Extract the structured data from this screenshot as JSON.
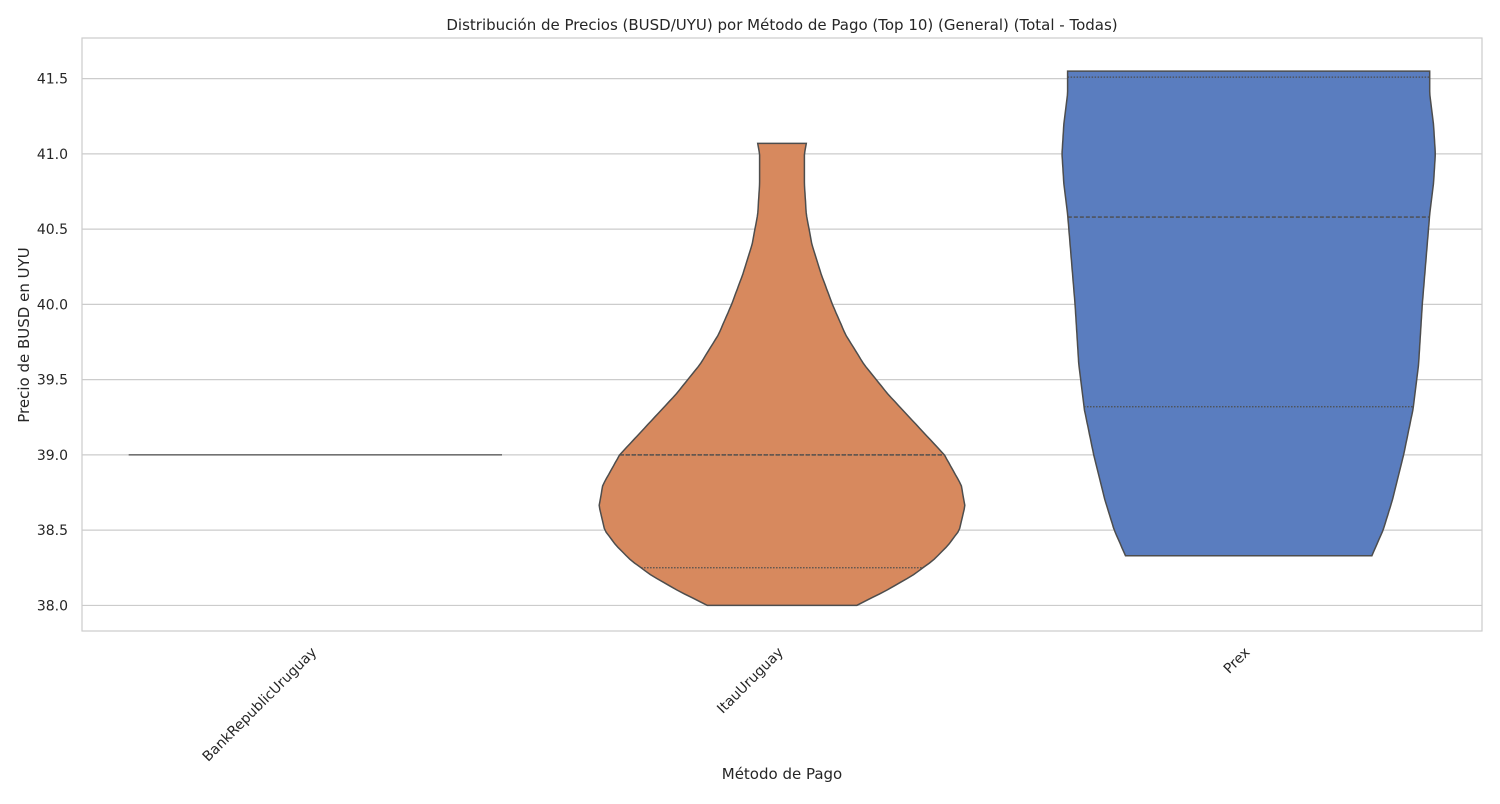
{
  "chart_data": {
    "type": "violin",
    "title": "Distribución de Precios (BUSD/UYU) por Método de Pago (Top 10) (General) (Total - Todas)",
    "xlabel": "Método de Pago",
    "ylabel": "Precio de BUSD en UYU",
    "categories": [
      "BankRepublicUruguay",
      "ItauUruguay",
      "Prex"
    ],
    "ylim": [
      37.83,
      41.77
    ],
    "yticks": [
      "38.0",
      "38.5",
      "39.0",
      "39.5",
      "40.0",
      "40.5",
      "41.0",
      "41.5"
    ],
    "grid": true,
    "inner": "quartile",
    "violins": [
      {
        "category": "BankRepublicUruguay",
        "color": "#cccccc",
        "min": 39.0,
        "max": 39.0,
        "quartiles": [
          39.0,
          39.0,
          39.0
        ],
        "density": [
          [
            39.0,
            1.0
          ]
        ]
      },
      {
        "category": "ItauUruguay",
        "color": "#d7895e",
        "min": 38.0,
        "max": 41.07,
        "quartiles": [
          38.25,
          39.0,
          39.0
        ],
        "density": [
          [
            38.0,
            0.4
          ],
          [
            38.1,
            0.56
          ],
          [
            38.2,
            0.7
          ],
          [
            38.3,
            0.81
          ],
          [
            38.4,
            0.89
          ],
          [
            38.5,
            0.95
          ],
          [
            38.66,
            0.98
          ],
          [
            38.8,
            0.96
          ],
          [
            39.0,
            0.87
          ],
          [
            39.2,
            0.72
          ],
          [
            39.4,
            0.57
          ],
          [
            39.6,
            0.44
          ],
          [
            39.8,
            0.34
          ],
          [
            40.0,
            0.27
          ],
          [
            40.2,
            0.21
          ],
          [
            40.4,
            0.16
          ],
          [
            40.6,
            0.13
          ],
          [
            40.8,
            0.12
          ],
          [
            41.0,
            0.12
          ],
          [
            41.07,
            0.13
          ]
        ]
      },
      {
        "category": "Prex",
        "color": "#5a7dbf",
        "min": 38.33,
        "max": 41.55,
        "quartiles": [
          39.32,
          40.58,
          41.51
        ],
        "density": [
          [
            38.33,
            0.66
          ],
          [
            38.5,
            0.72
          ],
          [
            38.7,
            0.77
          ],
          [
            39.0,
            0.83
          ],
          [
            39.3,
            0.88
          ],
          [
            39.6,
            0.91
          ],
          [
            40.0,
            0.93
          ],
          [
            40.3,
            0.95
          ],
          [
            40.6,
            0.97
          ],
          [
            40.8,
            0.99
          ],
          [
            41.0,
            1.0
          ],
          [
            41.2,
            0.99
          ],
          [
            41.4,
            0.97
          ],
          [
            41.55,
            0.97
          ]
        ]
      }
    ]
  }
}
